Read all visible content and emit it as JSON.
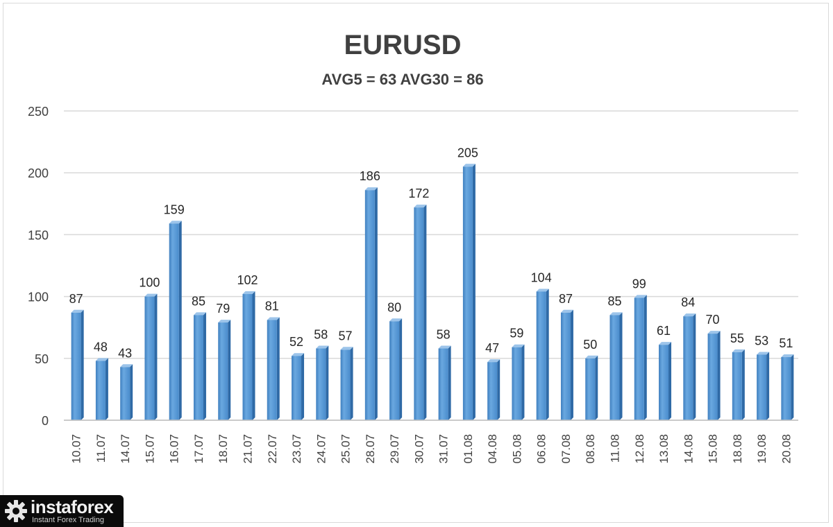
{
  "chart_data": {
    "type": "bar",
    "title": "EURUSD",
    "subtitle": "AVG5 = 63 AVG30 = 86",
    "categories": [
      "10.07",
      "11.07",
      "14.07",
      "15.07",
      "16.07",
      "17.07",
      "18.07",
      "21.07",
      "22.07",
      "23.07",
      "24.07",
      "25.07",
      "28.07",
      "29.07",
      "30.07",
      "31.07",
      "01.08",
      "04.08",
      "05.08",
      "06.08",
      "07.08",
      "08.08",
      "11.08",
      "12.08",
      "13.08",
      "14.08",
      "15.08",
      "18.08",
      "19.08",
      "20.08"
    ],
    "values": [
      87,
      48,
      43,
      100,
      159,
      85,
      79,
      102,
      81,
      52,
      58,
      57,
      186,
      80,
      172,
      58,
      205,
      47,
      59,
      104,
      87,
      50,
      85,
      99,
      61,
      84,
      70,
      55,
      53,
      51
    ],
    "ylim": [
      0,
      250
    ],
    "yticks": [
      0,
      50,
      100,
      150,
      200,
      250
    ],
    "grid": true,
    "legend": "none",
    "bar_color": "#5b9bd5"
  },
  "brand": {
    "name": "instaforex",
    "tagline": "Instant Forex Trading"
  }
}
